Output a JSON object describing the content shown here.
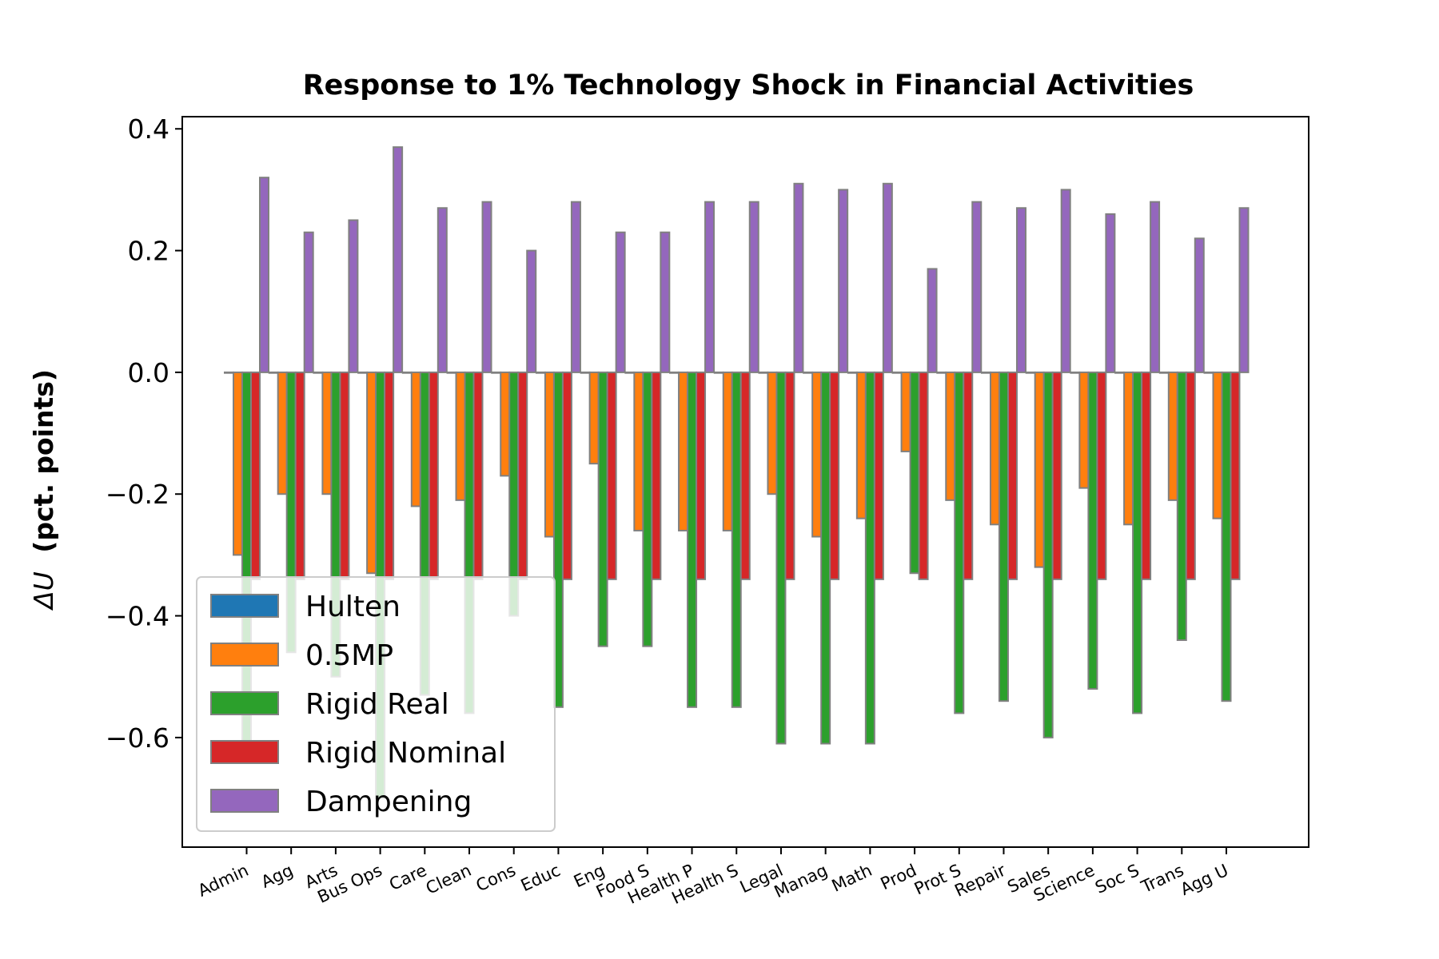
{
  "chart_data": {
    "type": "bar",
    "title": "Response to 1% Technology Shock in Financial Activities",
    "ylabel_prefix": "ΔU",
    "ylabel": "(pct. points)",
    "xlabel": "",
    "ylim": [
      -0.78,
      0.42
    ],
    "yticks": [
      0.4,
      0.2,
      0.0,
      -0.2,
      -0.4,
      -0.6
    ],
    "ytick_labels": [
      "0.4",
      "0.2",
      "0.0",
      "−0.2",
      "−0.4",
      "−0.6"
    ],
    "grid": false,
    "legend_position": "lower-left",
    "categories": [
      "Admin",
      "Agg",
      "Arts",
      "Bus Ops",
      "Care",
      "Clean",
      "Cons",
      "Educ",
      "Eng",
      "Food S",
      "Health P",
      "Health S",
      "Legal",
      "Manag",
      "Math",
      "Prod",
      "Prot S",
      "Repair",
      "Sales",
      "Science",
      "Soc S",
      "Trans",
      "Agg U"
    ],
    "series": [
      {
        "name": "Hulten",
        "color": "#1f77b4",
        "values": [
          0,
          0,
          0,
          0,
          0,
          0,
          0,
          0,
          0,
          0,
          0,
          0,
          0,
          0,
          0,
          0,
          0,
          0,
          0,
          0,
          0,
          0,
          0
        ]
      },
      {
        "name": "0.5MP",
        "color": "#ff7f0e",
        "values": [
          -0.3,
          -0.2,
          -0.2,
          -0.33,
          -0.22,
          -0.21,
          -0.17,
          -0.27,
          -0.15,
          -0.26,
          -0.26,
          -0.26,
          -0.2,
          -0.27,
          -0.24,
          -0.13,
          -0.21,
          -0.25,
          -0.32,
          -0.19,
          -0.25,
          -0.21,
          -0.24
        ]
      },
      {
        "name": "Rigid Real",
        "color": "#2ca02c",
        "values": [
          -0.61,
          -0.46,
          -0.5,
          -0.7,
          -0.53,
          -0.56,
          -0.4,
          -0.55,
          -0.45,
          -0.45,
          -0.55,
          -0.55,
          -0.61,
          -0.61,
          -0.61,
          -0.33,
          -0.56,
          -0.54,
          -0.6,
          -0.52,
          -0.56,
          -0.44,
          -0.54
        ]
      },
      {
        "name": "Rigid Nominal",
        "color": "#d62728",
        "values": [
          -0.34,
          -0.34,
          -0.34,
          -0.34,
          -0.34,
          -0.34,
          -0.34,
          -0.34,
          -0.34,
          -0.34,
          -0.34,
          -0.34,
          -0.34,
          -0.34,
          -0.34,
          -0.34,
          -0.34,
          -0.34,
          -0.34,
          -0.34,
          -0.34,
          -0.34,
          -0.34
        ]
      },
      {
        "name": "Dampening",
        "color": "#9467bd",
        "values": [
          0.32,
          0.23,
          0.25,
          0.37,
          0.27,
          0.28,
          0.2,
          0.28,
          0.23,
          0.23,
          0.28,
          0.28,
          0.31,
          0.3,
          0.31,
          0.17,
          0.28,
          0.27,
          0.3,
          0.26,
          0.28,
          0.22,
          0.27
        ]
      }
    ]
  }
}
